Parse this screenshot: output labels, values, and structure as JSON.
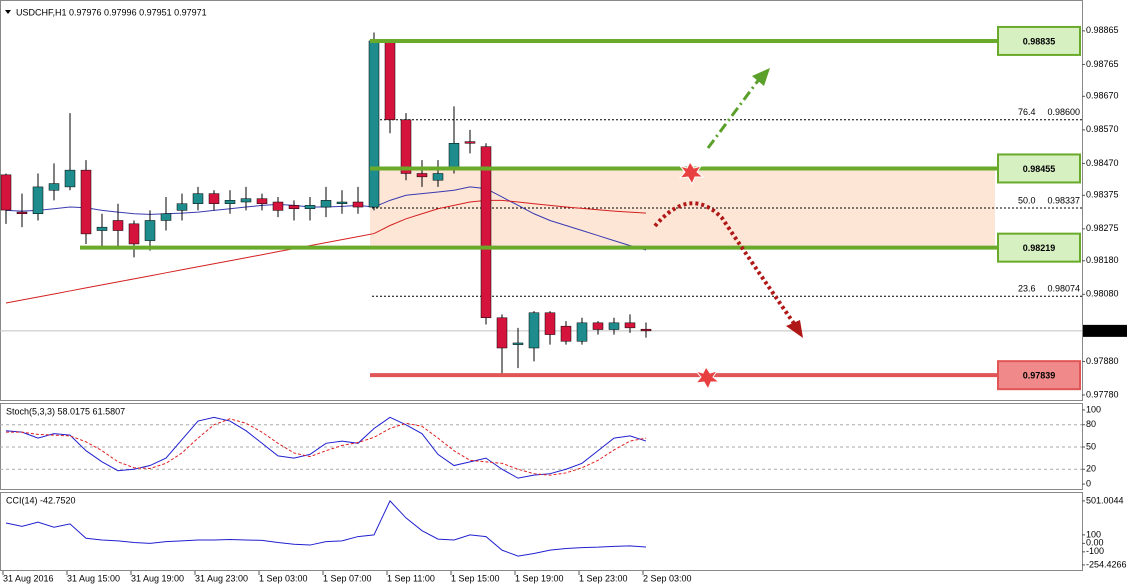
{
  "chart_data": [
    {
      "type": "candlestick",
      "title": "USDCHF,H1  0.97976 0.97996 0.97951 0.97971",
      "categories": [
        "31 Aug 2016",
        null,
        null,
        null,
        "31 Aug 15:00",
        null,
        null,
        null,
        "31 Aug 19:00",
        null,
        null,
        null,
        "31 Aug 23:00",
        null,
        null,
        null,
        "1 Sep 03:00",
        null,
        null,
        null,
        "1 Sep 07:00",
        null,
        null,
        null,
        "1 Sep 11:00",
        null,
        null,
        null,
        "1 Sep 15:00",
        null,
        null,
        null,
        "1 Sep 19:00",
        null,
        null,
        null,
        "1 Sep 23:00",
        null,
        null,
        null,
        "2 Sep 03:00"
      ],
      "open": [
        0.98436,
        0.98325,
        0.9832,
        0.9839,
        0.984,
        0.9845,
        0.9827,
        0.983,
        0.9829,
        0.9824,
        0.983,
        0.9833,
        0.9835,
        0.9838,
        0.9835,
        0.98355,
        0.98365,
        0.98355,
        0.98345,
        0.98335,
        0.9834,
        0.9835,
        0.98355,
        0.9834,
        0.98835,
        0.986,
        0.9844,
        0.9842,
        0.9846,
        0.98535,
        0.9852,
        0.9801,
        0.9793,
        0.9792,
        0.98025,
        0.97985,
        0.9794,
        0.97995,
        0.97975,
        0.97995,
        0.97976
      ],
      "high": [
        0.9844,
        0.9838,
        0.9844,
        0.9847,
        0.9862,
        0.9848,
        0.9832,
        0.9835,
        0.983,
        0.9833,
        0.9837,
        0.9838,
        0.984,
        0.9839,
        0.9839,
        0.984,
        0.9838,
        0.9837,
        0.9836,
        0.9837,
        0.984,
        0.9839,
        0.984,
        0.9886,
        0.9884,
        0.9862,
        0.9848,
        0.9848,
        0.9864,
        0.9857,
        0.9853,
        0.9802,
        0.9798,
        0.9803,
        0.9803,
        0.98,
        0.9801,
        0.98,
        0.9801,
        0.9802,
        0.97996
      ],
      "low": [
        0.9829,
        0.9828,
        0.983,
        0.9836,
        0.9839,
        0.9823,
        0.9822,
        0.9822,
        0.9819,
        0.9821,
        0.9827,
        0.983,
        0.9833,
        0.9833,
        0.9832,
        0.9833,
        0.9833,
        0.9831,
        0.983,
        0.983,
        0.9831,
        0.9832,
        0.9832,
        0.9833,
        0.9856,
        0.9842,
        0.984,
        0.984,
        0.9844,
        0.985,
        0.9799,
        0.97839,
        0.9786,
        0.9788,
        0.9793,
        0.9793,
        0.9793,
        0.9796,
        0.9796,
        0.97965,
        0.97951
      ],
      "close": [
        0.98331,
        0.9832,
        0.984,
        0.9841,
        0.9845,
        0.9826,
        0.9828,
        0.9827,
        0.9823,
        0.983,
        0.9832,
        0.9835,
        0.9838,
        0.9835,
        0.9836,
        0.98365,
        0.9835,
        0.9833,
        0.98335,
        0.98345,
        0.9836,
        0.98355,
        0.9834,
        0.98835,
        0.986,
        0.9844,
        0.9843,
        0.9844,
        0.9853,
        0.9853,
        0.9801,
        0.9792,
        0.97935,
        0.98025,
        0.9796,
        0.9794,
        0.97995,
        0.97975,
        0.97995,
        0.9798,
        0.97971
      ],
      "up_color": "#1e8c8c",
      "down_color": "#d4143c",
      "ma_lines": [
        {
          "color": "#3a3ab0",
          "values": [
            0.9833,
            0.98328,
            0.9833,
            0.98335,
            0.9834,
            0.98338,
            0.9833,
            0.98325,
            0.9832,
            0.98318,
            0.9832,
            0.98322,
            0.98325,
            0.9833,
            0.98335,
            0.9834,
            0.98345,
            0.98348,
            0.98345,
            0.9834,
            0.9834,
            0.98342,
            0.98345,
            0.9834,
            0.9836,
            0.98375,
            0.9838,
            0.98385,
            0.9839,
            0.984,
            0.98395,
            0.9837,
            0.98345,
            0.9832,
            0.983,
            0.98285,
            0.9827,
            0.98255,
            0.9824,
            0.98225,
            0.98212
          ]
        },
        {
          "color": "#d42020",
          "values": [
            0.98054,
            0.98063,
            0.98072,
            0.98081,
            0.9809,
            0.98099,
            0.98108,
            0.98117,
            0.98126,
            0.98135,
            0.98144,
            0.98153,
            0.98162,
            0.98171,
            0.9818,
            0.98189,
            0.98198,
            0.98207,
            0.98216,
            0.98225,
            0.98234,
            0.98243,
            0.98252,
            0.98261,
            0.98285,
            0.98305,
            0.9832,
            0.98335,
            0.98345,
            0.98355,
            0.9836,
            0.9836,
            0.98355,
            0.9835,
            0.98345,
            0.9834,
            0.98336,
            0.98332,
            0.98328,
            0.98325,
            0.98322
          ]
        }
      ],
      "levels": [
        {
          "value": 0.98835,
          "color": "#6aaa2a",
          "box": "#d6f0c2"
        },
        {
          "value": 0.98455,
          "color": "#6aaa2a",
          "box": "#d6f0c2"
        },
        {
          "value": 0.98219,
          "color": "#6aaa2a",
          "box": "#d6f0c2"
        },
        {
          "value": 0.97839,
          "color": "#e05555",
          "box": "#f08a8a"
        }
      ],
      "zone_color": "#fde6d6",
      "fib_levels": [
        {
          "ratio": 76.4,
          "price": {
            "value": 0.986,
            "label": "0.98600"
          }
        },
        {
          "ratio": {
            "value": 50,
            "label": "50.0"
          },
          "price": 0.98337
        },
        {
          "ratio": 23.6,
          "price": 0.98074
        }
      ],
      "current_price": 0.97971,
      "ylim": [
        0.97765,
        0.98957
      ],
      "yticks": [
        0.98865,
        0.98765,
        {
          "value": 0.9867,
          "label": "0.98670"
        },
        {
          "value": 0.9857,
          "label": "0.98570"
        },
        {
          "value": 0.9847,
          "label": "0.98470"
        },
        0.98375,
        0.98275,
        {
          "value": 0.9818,
          "label": "0.98180"
        },
        {
          "value": 0.9808,
          "label": "0.98080"
        },
        {
          "value": 0.9788,
          "label": "0.97880"
        },
        {
          "value": 0.9778,
          "label": "0.97780"
        }
      ]
    },
    {
      "type": "line",
      "title": "Stoch(5,3,3) 58.0175 61.5807",
      "ylim": [
        -8,
        108
      ],
      "yticks": [
        100,
        80,
        50,
        20,
        0
      ],
      "series": [
        {
          "color": "#2020d0",
          "values": [
            72,
            70,
            62,
            68,
            66,
            45,
            30,
            18,
            20,
            25,
            35,
            60,
            85,
            90,
            85,
            72,
            55,
            38,
            35,
            40,
            55,
            58,
            55,
            75,
            90,
            80,
            68,
            40,
            25,
            30,
            35,
            20,
            8,
            12,
            14,
            20,
            28,
            45,
            62,
            65,
            58
          ]
        },
        {
          "color": "#e02020",
          "dashed": true,
          "values": [
            70,
            70,
            67,
            66,
            65,
            57,
            45,
            30,
            22,
            21,
            28,
            42,
            62,
            80,
            88,
            82,
            70,
            55,
            42,
            37,
            45,
            52,
            56,
            63,
            75,
            82,
            78,
            62,
            45,
            32,
            30,
            28,
            20,
            14,
            12,
            15,
            22,
            32,
            46,
            58,
            62
          ]
        }
      ]
    },
    {
      "type": "line",
      "title": "CCI(14) -42.7520",
      "ylim": [
        -326,
        594
      ],
      "yticks": [
        501.0044,
        100,
        {
          "value": 0,
          "label": "0.00"
        },
        -100,
        -254.4266
      ],
      "series": [
        {
          "color": "#2020d0",
          "values": [
            240,
            200,
            250,
            190,
            230,
            60,
            40,
            30,
            10,
            0,
            20,
            30,
            40,
            40,
            45,
            40,
            35,
            10,
            -10,
            -20,
            20,
            30,
            80,
            100,
            501,
            300,
            150,
            50,
            40,
            100,
            80,
            -80,
            -150,
            -120,
            -80,
            -60,
            -50,
            -45,
            -35,
            -30,
            -43
          ]
        }
      ]
    }
  ]
}
